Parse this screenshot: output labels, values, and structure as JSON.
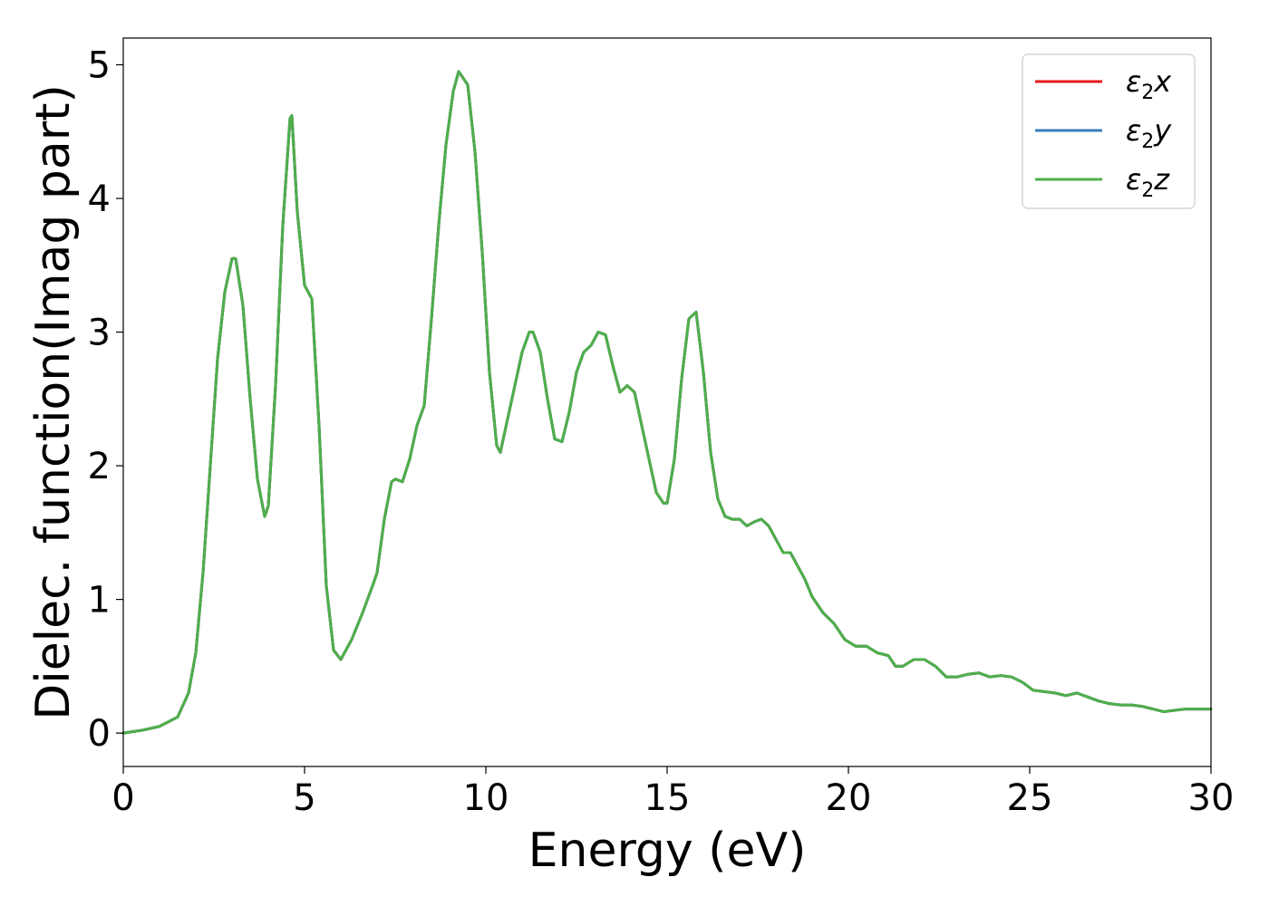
{
  "chart_data": {
    "type": "line",
    "xlabel": "Energy (eV)",
    "ylabel": "Dielec. function(Imag part)",
    "xlim": [
      0,
      30
    ],
    "ylim": [
      -0.25,
      5.2
    ],
    "xticks": [
      0,
      5,
      10,
      15,
      20,
      25,
      30
    ],
    "yticks": [
      0,
      1,
      2,
      3,
      4,
      5
    ],
    "grid": false,
    "legend_position": "top-right",
    "x": [
      0,
      0.5,
      1.0,
      1.5,
      1.8,
      2.0,
      2.2,
      2.4,
      2.6,
      2.8,
      3.0,
      3.1,
      3.3,
      3.5,
      3.7,
      3.9,
      4.0,
      4.2,
      4.4,
      4.6,
      4.65,
      4.8,
      5.0,
      5.2,
      5.4,
      5.6,
      5.8,
      6.0,
      6.3,
      6.6,
      6.9,
      7.0,
      7.2,
      7.4,
      7.5,
      7.7,
      7.9,
      8.1,
      8.3,
      8.5,
      8.7,
      8.9,
      9.1,
      9.25,
      9.5,
      9.7,
      9.9,
      10.1,
      10.3,
      10.4,
      10.6,
      10.8,
      11.0,
      11.2,
      11.3,
      11.5,
      11.7,
      11.9,
      12.1,
      12.3,
      12.5,
      12.7,
      12.9,
      13.1,
      13.3,
      13.5,
      13.7,
      13.9,
      14.1,
      14.3,
      14.5,
      14.7,
      14.9,
      15.0,
      15.2,
      15.4,
      15.6,
      15.8,
      16.0,
      16.2,
      16.4,
      16.6,
      16.8,
      17.0,
      17.2,
      17.4,
      17.6,
      17.8,
      18.0,
      18.2,
      18.4,
      18.6,
      18.8,
      19.0,
      19.3,
      19.6,
      19.9,
      20.2,
      20.5,
      20.8,
      21.1,
      21.3,
      21.5,
      21.8,
      22.1,
      22.4,
      22.7,
      23.0,
      23.3,
      23.6,
      23.9,
      24.2,
      24.5,
      24.8,
      25.1,
      25.4,
      25.7,
      26.0,
      26.3,
      26.6,
      26.9,
      27.2,
      27.5,
      27.8,
      28.1,
      28.4,
      28.7,
      29.0,
      29.3,
      29.6,
      30.0
    ],
    "series": [
      {
        "name": "ε2x",
        "color": "#e41a1c",
        "values": [
          0.0,
          0.02,
          0.05,
          0.12,
          0.3,
          0.6,
          1.2,
          2.0,
          2.8,
          3.3,
          3.55,
          3.55,
          3.2,
          2.5,
          1.9,
          1.62,
          1.7,
          2.6,
          3.8,
          4.6,
          4.62,
          3.9,
          3.35,
          3.25,
          2.3,
          1.1,
          0.62,
          0.55,
          0.7,
          0.9,
          1.12,
          1.2,
          1.6,
          1.88,
          1.9,
          1.88,
          2.05,
          2.3,
          2.45,
          3.1,
          3.8,
          4.4,
          4.8,
          4.95,
          4.85,
          4.35,
          3.6,
          2.7,
          2.15,
          2.1,
          2.35,
          2.6,
          2.85,
          3.0,
          3.0,
          2.85,
          2.5,
          2.2,
          2.18,
          2.4,
          2.7,
          2.85,
          2.9,
          3.0,
          2.98,
          2.75,
          2.55,
          2.6,
          2.55,
          2.3,
          2.05,
          1.8,
          1.72,
          1.72,
          2.05,
          2.65,
          3.1,
          3.15,
          2.7,
          2.1,
          1.75,
          1.62,
          1.6,
          1.6,
          1.55,
          1.58,
          1.6,
          1.55,
          1.45,
          1.35,
          1.35,
          1.25,
          1.15,
          1.02,
          0.9,
          0.82,
          0.7,
          0.65,
          0.65,
          0.6,
          0.58,
          0.5,
          0.5,
          0.55,
          0.55,
          0.5,
          0.42,
          0.42,
          0.44,
          0.45,
          0.42,
          0.43,
          0.42,
          0.38,
          0.32,
          0.31,
          0.3,
          0.28,
          0.3,
          0.27,
          0.24,
          0.22,
          0.21,
          0.21,
          0.2,
          0.18,
          0.16,
          0.17,
          0.18,
          0.18,
          0.18
        ]
      },
      {
        "name": "ε2y",
        "color": "#377eb8",
        "values": [
          0.0,
          0.02,
          0.05,
          0.12,
          0.3,
          0.6,
          1.2,
          2.0,
          2.8,
          3.3,
          3.55,
          3.55,
          3.2,
          2.5,
          1.9,
          1.62,
          1.7,
          2.6,
          3.8,
          4.6,
          4.62,
          3.9,
          3.35,
          3.25,
          2.3,
          1.1,
          0.62,
          0.55,
          0.7,
          0.9,
          1.12,
          1.2,
          1.6,
          1.88,
          1.9,
          1.88,
          2.05,
          2.3,
          2.45,
          3.1,
          3.8,
          4.4,
          4.8,
          4.95,
          4.85,
          4.35,
          3.6,
          2.7,
          2.15,
          2.1,
          2.35,
          2.6,
          2.85,
          3.0,
          3.0,
          2.85,
          2.5,
          2.2,
          2.18,
          2.4,
          2.7,
          2.85,
          2.9,
          3.0,
          2.98,
          2.75,
          2.55,
          2.6,
          2.55,
          2.3,
          2.05,
          1.8,
          1.72,
          1.72,
          2.05,
          2.65,
          3.1,
          3.15,
          2.7,
          2.1,
          1.75,
          1.62,
          1.6,
          1.6,
          1.55,
          1.58,
          1.6,
          1.55,
          1.45,
          1.35,
          1.35,
          1.25,
          1.15,
          1.02,
          0.9,
          0.82,
          0.7,
          0.65,
          0.65,
          0.6,
          0.58,
          0.5,
          0.5,
          0.55,
          0.55,
          0.5,
          0.42,
          0.42,
          0.44,
          0.45,
          0.42,
          0.43,
          0.42,
          0.38,
          0.32,
          0.31,
          0.3,
          0.28,
          0.3,
          0.27,
          0.24,
          0.22,
          0.21,
          0.21,
          0.2,
          0.18,
          0.16,
          0.17,
          0.18,
          0.18,
          0.18
        ]
      },
      {
        "name": "ε2z",
        "color": "#4daf4a",
        "values": [
          0.0,
          0.02,
          0.05,
          0.12,
          0.3,
          0.6,
          1.2,
          2.0,
          2.8,
          3.3,
          3.55,
          3.55,
          3.2,
          2.5,
          1.9,
          1.62,
          1.7,
          2.6,
          3.8,
          4.6,
          4.62,
          3.9,
          3.35,
          3.25,
          2.3,
          1.1,
          0.62,
          0.55,
          0.7,
          0.9,
          1.12,
          1.2,
          1.6,
          1.88,
          1.9,
          1.88,
          2.05,
          2.3,
          2.45,
          3.1,
          3.8,
          4.4,
          4.8,
          4.95,
          4.85,
          4.35,
          3.6,
          2.7,
          2.15,
          2.1,
          2.35,
          2.6,
          2.85,
          3.0,
          3.0,
          2.85,
          2.5,
          2.2,
          2.18,
          2.4,
          2.7,
          2.85,
          2.9,
          3.0,
          2.98,
          2.75,
          2.55,
          2.6,
          2.55,
          2.3,
          2.05,
          1.8,
          1.72,
          1.72,
          2.05,
          2.65,
          3.1,
          3.15,
          2.7,
          2.1,
          1.75,
          1.62,
          1.6,
          1.6,
          1.55,
          1.58,
          1.6,
          1.55,
          1.45,
          1.35,
          1.35,
          1.25,
          1.15,
          1.02,
          0.9,
          0.82,
          0.7,
          0.65,
          0.65,
          0.6,
          0.58,
          0.5,
          0.5,
          0.55,
          0.55,
          0.5,
          0.42,
          0.42,
          0.44,
          0.45,
          0.42,
          0.43,
          0.42,
          0.38,
          0.32,
          0.31,
          0.3,
          0.28,
          0.3,
          0.27,
          0.24,
          0.22,
          0.21,
          0.21,
          0.2,
          0.18,
          0.16,
          0.17,
          0.18,
          0.18,
          0.18
        ]
      }
    ]
  }
}
